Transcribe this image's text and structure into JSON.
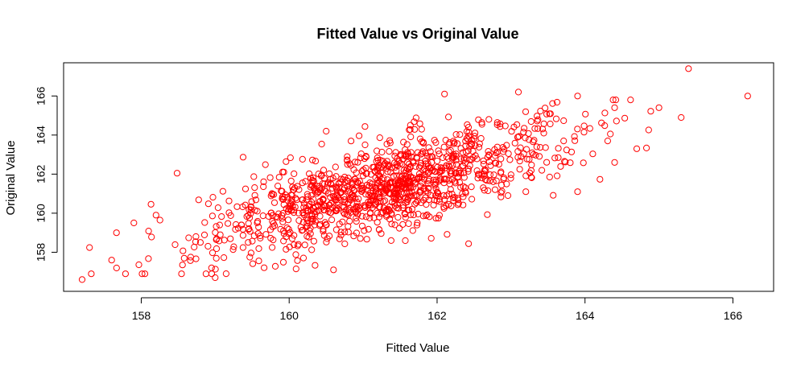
{
  "chart_data": {
    "type": "scatter",
    "title": "Fitted Value vs Original Value",
    "xlabel": "Fitted Value",
    "ylabel": "Original Value",
    "xlim": [
      156.95,
      166.55
    ],
    "ylim": [
      156.0,
      167.7
    ],
    "xticks": [
      158,
      160,
      162,
      164,
      166
    ],
    "yticks": [
      158,
      160,
      162,
      164,
      166
    ],
    "xtick_labels": [
      "158",
      "160",
      "162",
      "164",
      "166"
    ],
    "ytick_labels": [
      "158",
      "160",
      "162",
      "164",
      "166"
    ],
    "grid": false,
    "marker": "open-circle",
    "point_color": "#ff0000",
    "n_points": 1200,
    "trend": {
      "intercept": 0.0,
      "slope": 1.0
    },
    "residual_sd": 1.1,
    "x_distribution": {
      "mean": 161.3,
      "sd": 1.2
    },
    "notable_points": [
      {
        "x": 157.2,
        "y": 156.6
      },
      {
        "x": 157.6,
        "y": 157.6
      },
      {
        "x": 157.9,
        "y": 159.5
      },
      {
        "x": 158.2,
        "y": 159.9
      },
      {
        "x": 159.0,
        "y": 156.7
      },
      {
        "x": 160.6,
        "y": 157.1
      },
      {
        "x": 160.5,
        "y": 164.2
      },
      {
        "x": 162.1,
        "y": 166.1
      },
      {
        "x": 163.1,
        "y": 166.2
      },
      {
        "x": 163.9,
        "y": 166.0
      },
      {
        "x": 164.4,
        "y": 165.4
      },
      {
        "x": 165.0,
        "y": 165.4
      },
      {
        "x": 165.3,
        "y": 164.9
      },
      {
        "x": 165.4,
        "y": 167.4
      },
      {
        "x": 166.2,
        "y": 166.0
      },
      {
        "x": 164.4,
        "y": 162.6
      },
      {
        "x": 164.7,
        "y": 163.3
      },
      {
        "x": 163.9,
        "y": 161.1
      },
      {
        "x": 163.2,
        "y": 161.1
      }
    ]
  }
}
